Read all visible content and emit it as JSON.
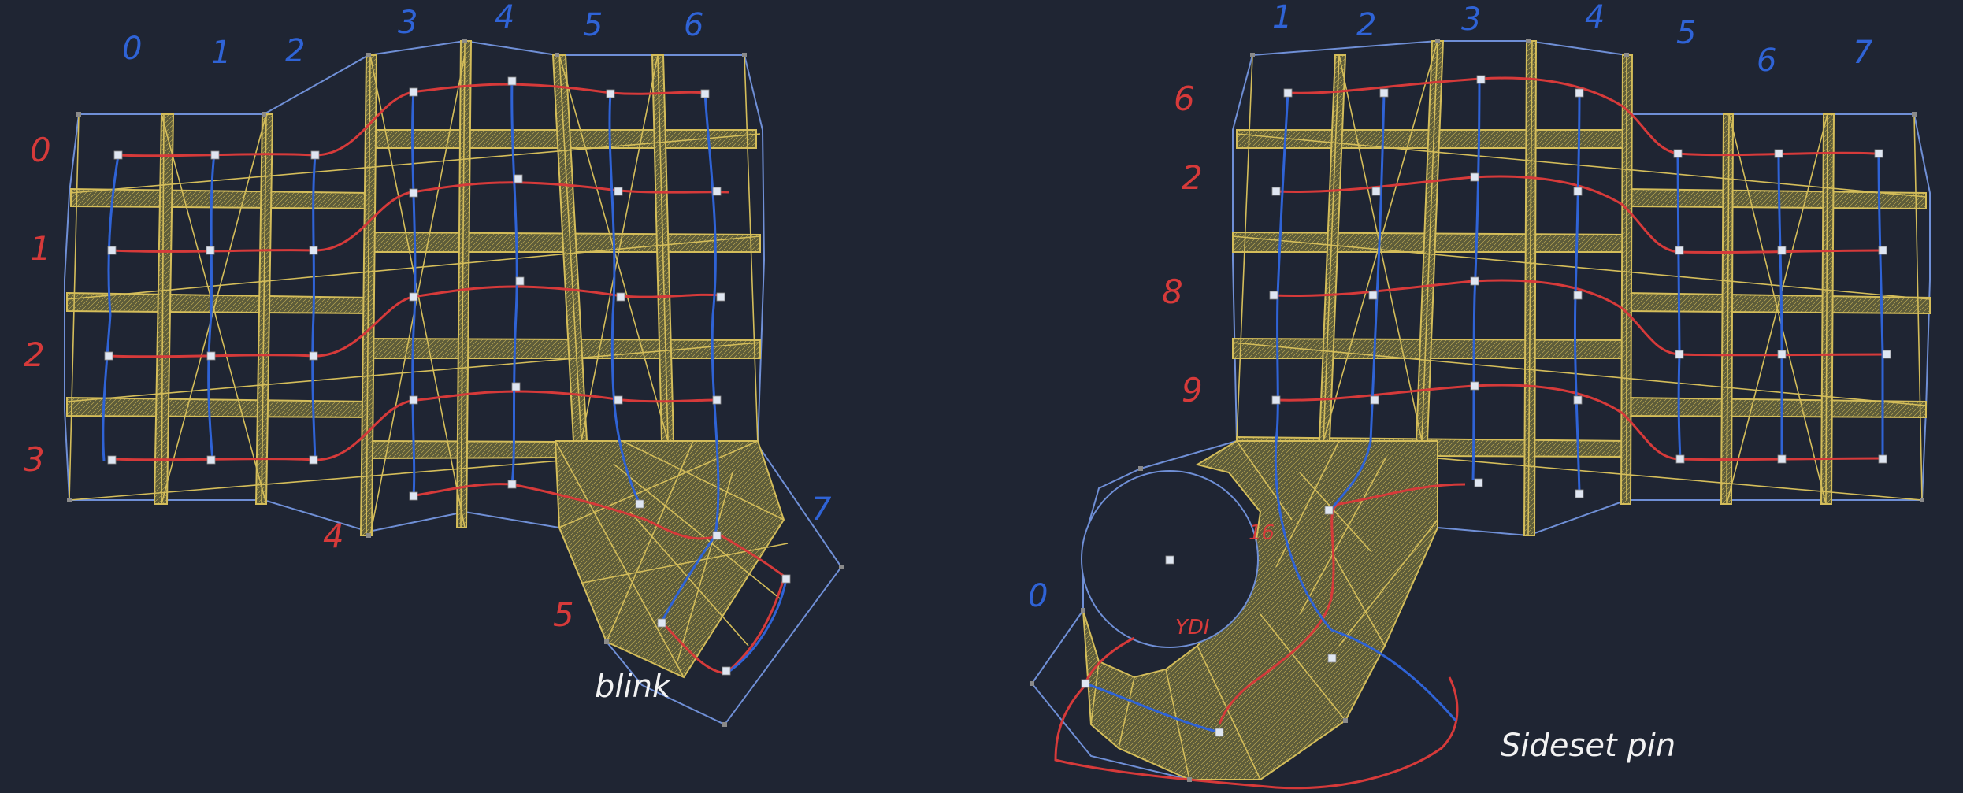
{
  "left_half": {
    "column_labels": [
      "0",
      "1",
      "2",
      "3",
      "4",
      "5",
      "6"
    ],
    "row_labels": [
      "0",
      "1",
      "2",
      "3",
      "4"
    ],
    "thumb_labels": [
      "5",
      "7"
    ],
    "note": "blink"
  },
  "right_half": {
    "column_labels": [
      "1",
      "2",
      "3",
      "4",
      "5",
      "6",
      "7"
    ],
    "row_labels": [
      "6",
      "2",
      "8",
      "9"
    ],
    "thumb_labels": [
      "16",
      "0"
    ],
    "thumb_note": "YDI",
    "note": "Sideset pin"
  },
  "colors": {
    "background": "#1f2533",
    "outline": "#6f8fd6",
    "web": "#d4bd5a",
    "web_fill": "#6b6a3f",
    "row_wire": "#d63a3a",
    "column_wire": "#2f63d6",
    "key": "#dfe6f2",
    "corner": "#8a8a8a"
  }
}
